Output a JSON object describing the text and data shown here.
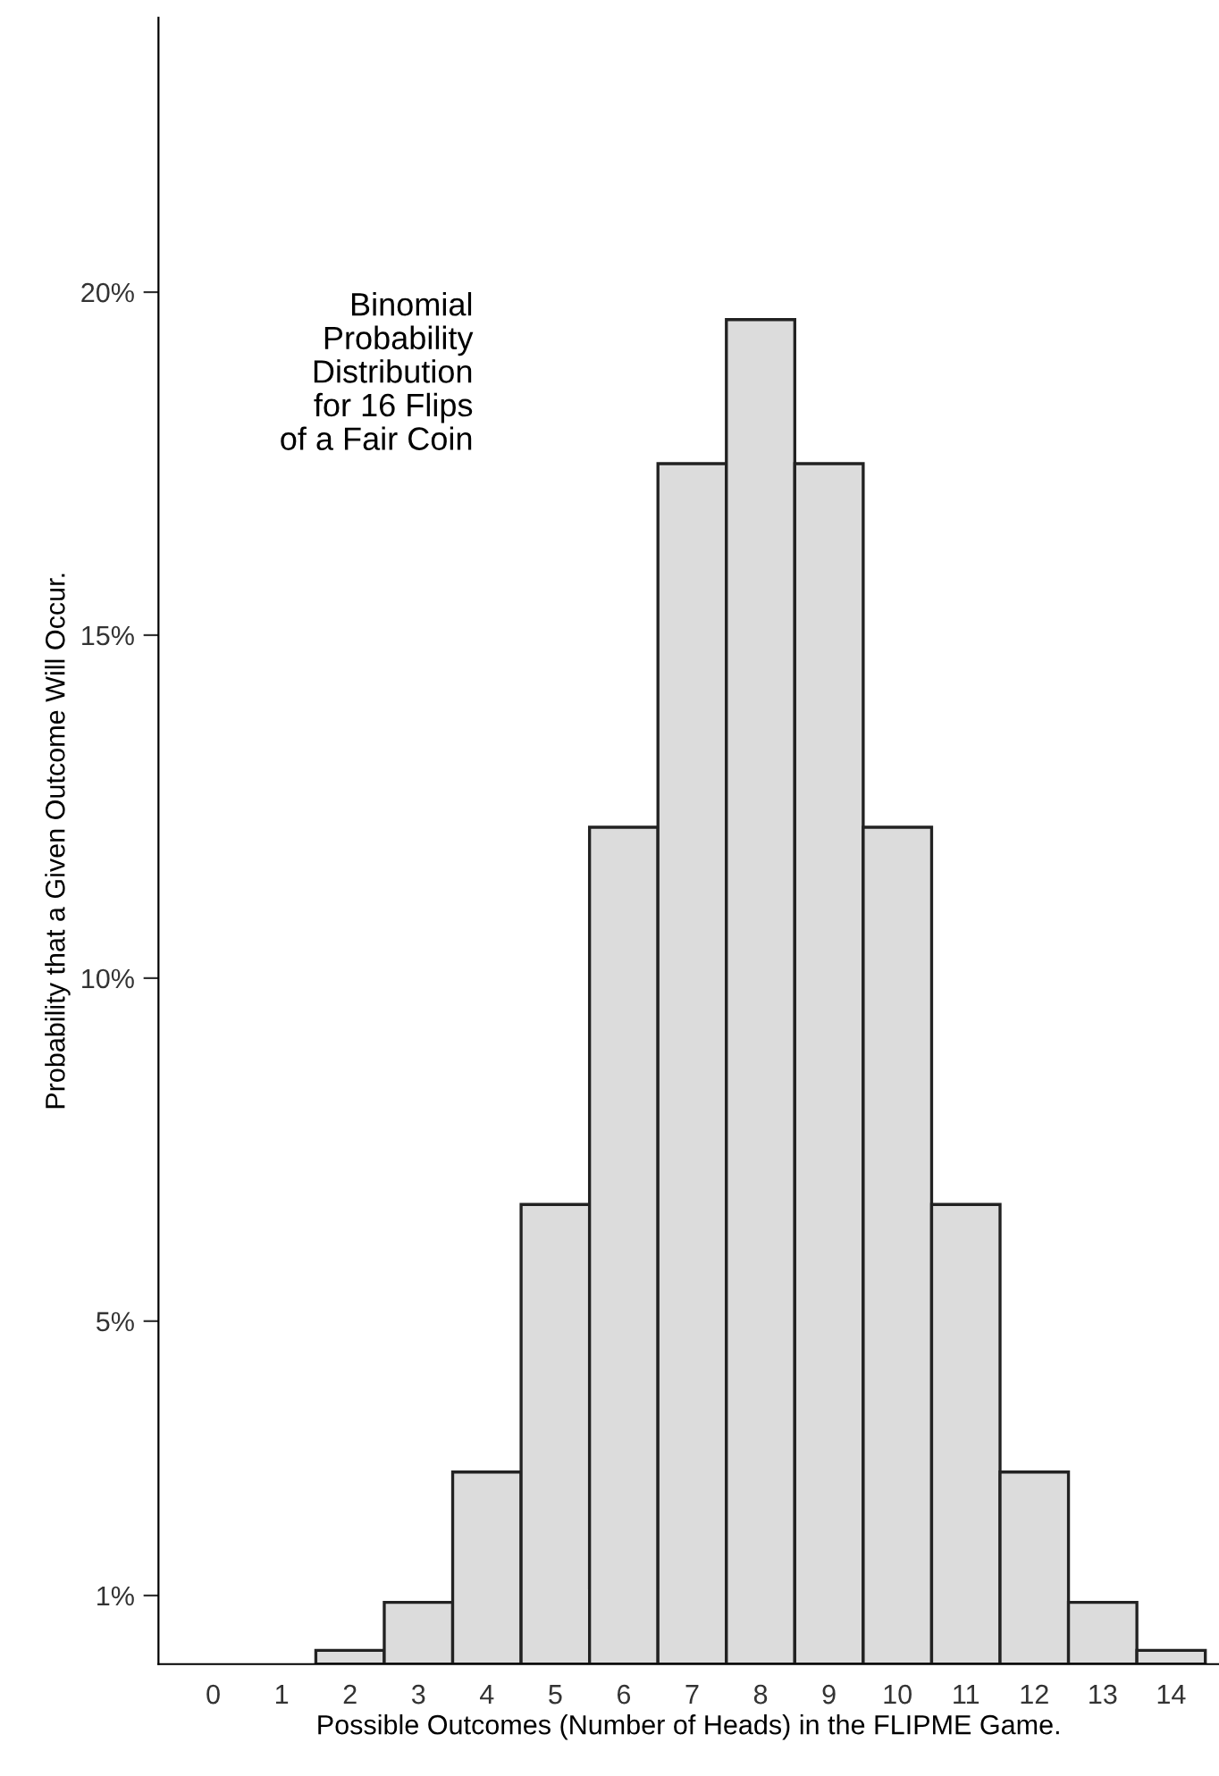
{
  "chart_data": {
    "type": "bar",
    "categories": [
      "0",
      "1",
      "2",
      "3",
      "4",
      "5",
      "6",
      "7",
      "8",
      "9",
      "10",
      "11",
      "12",
      "13",
      "14"
    ],
    "values": [
      null,
      null,
      0.2,
      0.9,
      2.8,
      6.7,
      12.2,
      17.5,
      19.6,
      17.5,
      12.2,
      6.7,
      2.8,
      0.9,
      0.2
    ],
    "color": "#dcdcdc",
    "xlabel": "Possible Outcomes (Number of Heads) in the FLIPME Game.",
    "ylabel": "Probability that a Given Outcome Will Occur.",
    "annotations": [
      "Binomial\nProbability\nDistribution\nfor 16 Flips\nof a Fair Coin"
    ],
    "ylim": [
      0,
      24
    ],
    "yticks": [
      {
        "value": 1,
        "label": "1%"
      },
      {
        "value": 5,
        "label": "5%"
      },
      {
        "value": 10,
        "label": "10%"
      },
      {
        "value": 15,
        "label": "15%"
      },
      {
        "value": 20,
        "label": "20%"
      }
    ],
    "grid": false
  }
}
